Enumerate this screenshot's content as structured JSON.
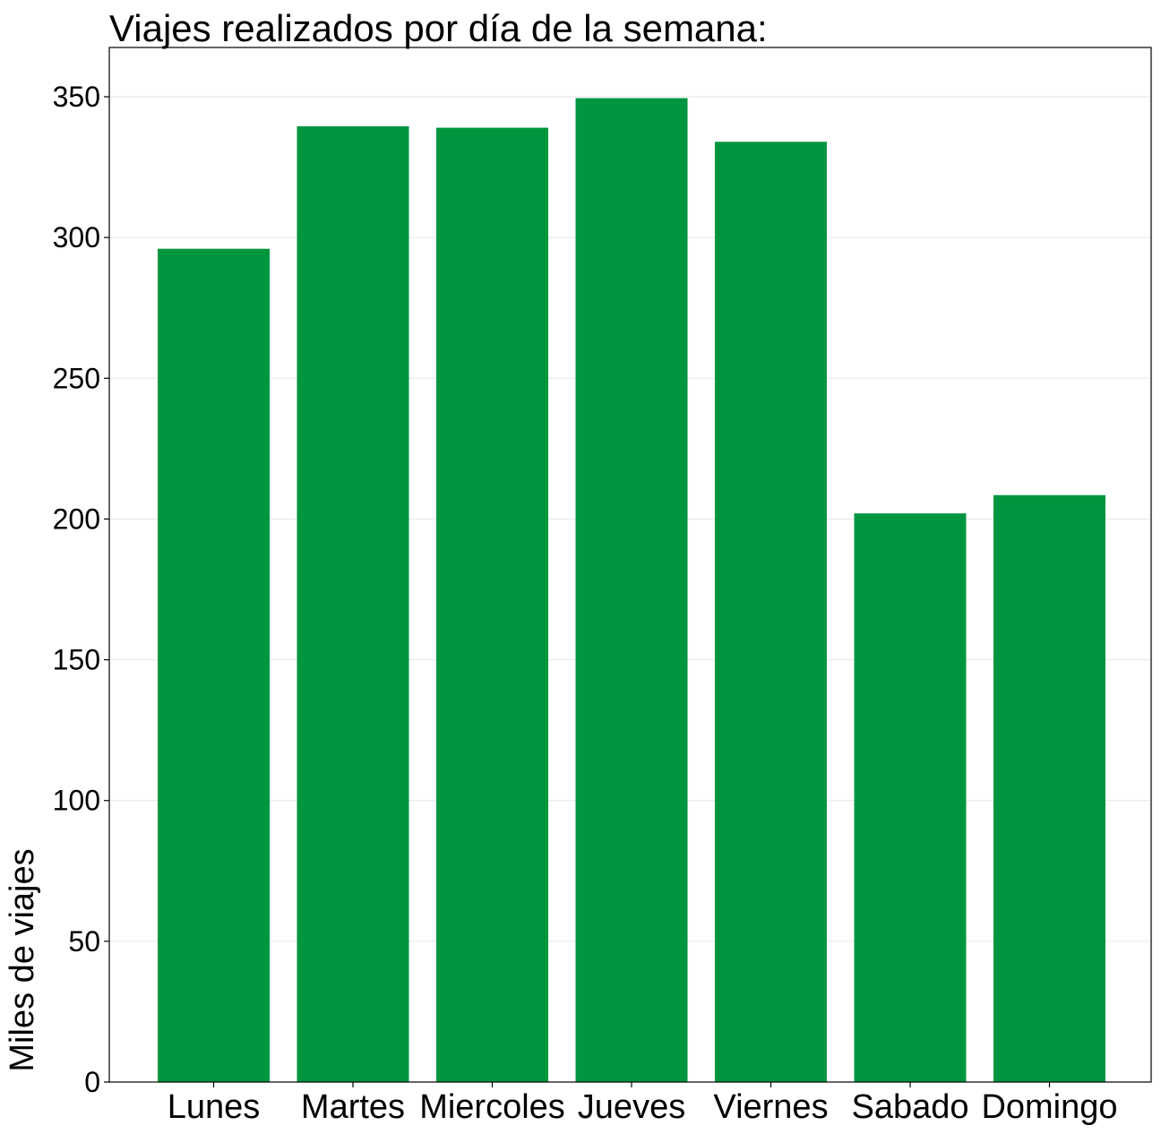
{
  "chart_data": {
    "type": "bar",
    "title": "Viajes realizados por día de la semana:",
    "xlabel": "",
    "ylabel": "Miles de viajes",
    "categories": [
      "Lunes",
      "Martes",
      "Miercoles",
      "Jueves",
      "Viernes",
      "Sabado",
      "Domingo"
    ],
    "values": [
      296,
      339.5,
      339,
      349.5,
      334,
      202,
      208.5
    ],
    "ylim": [
      0,
      367
    ],
    "yticks": [
      0,
      50,
      100,
      150,
      200,
      250,
      300,
      350
    ],
    "bar_color": "#00963f",
    "grid": true,
    "legend": "none"
  }
}
